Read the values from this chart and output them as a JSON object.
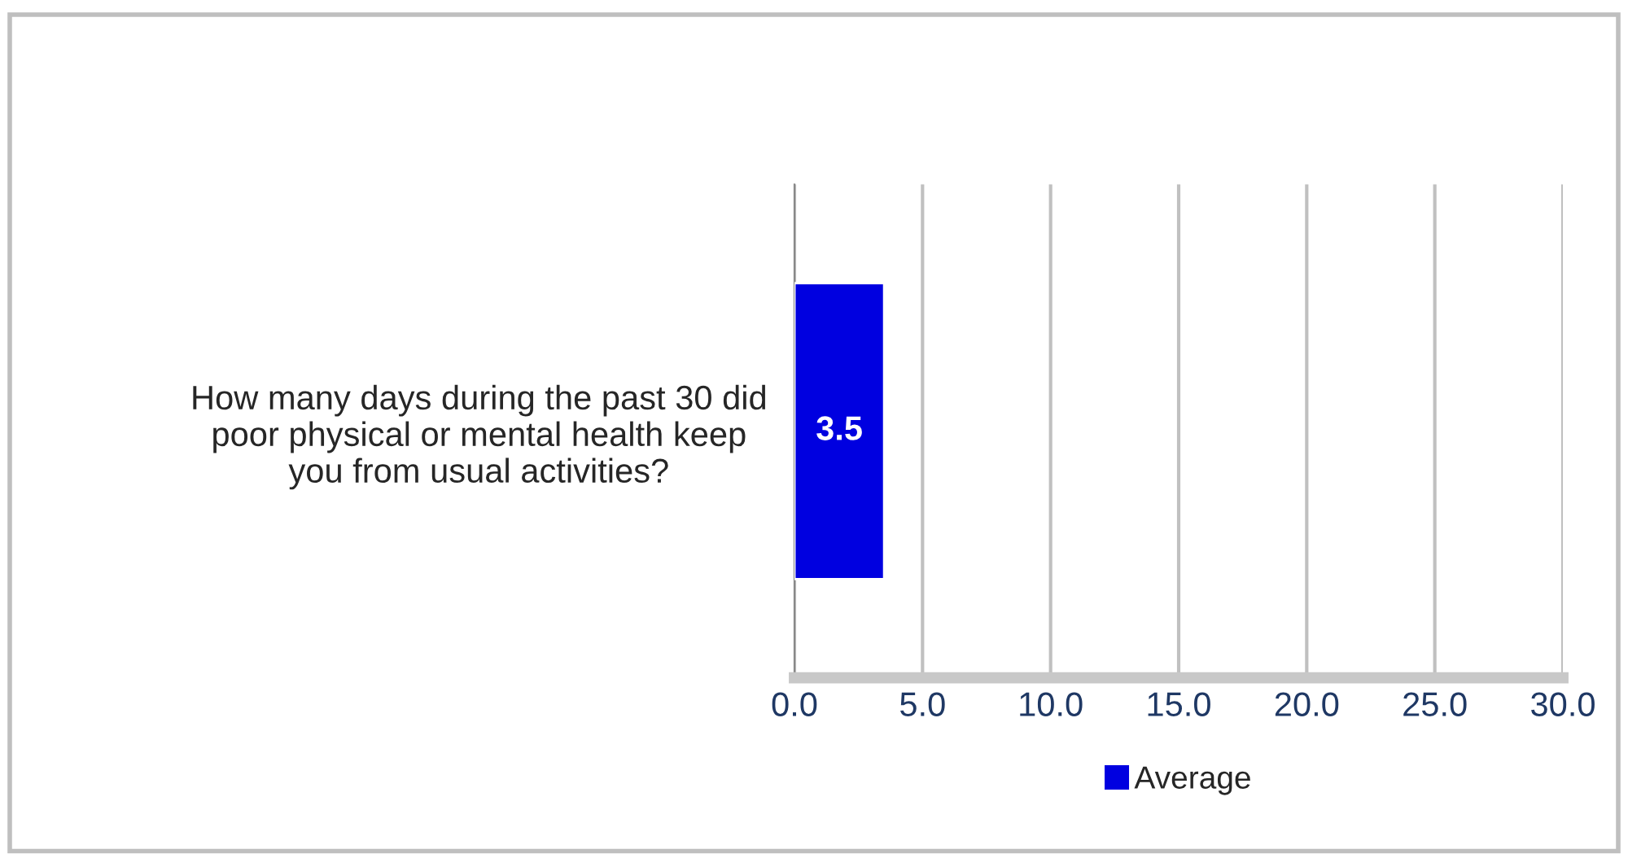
{
  "chart_data": {
    "type": "bar",
    "orientation": "horizontal",
    "categories": [
      "How many days during the past 30 did\npoor physical or mental health keep\nyou from usual activities?"
    ],
    "series": [
      {
        "name": "Average",
        "color": "#0000e0",
        "values": [
          3.5
        ]
      }
    ],
    "xlim": [
      0,
      30
    ],
    "xticks": [
      {
        "value": 0,
        "label": "0.0"
      },
      {
        "value": 5,
        "label": "5.0"
      },
      {
        "value": 10,
        "label": "10.0"
      },
      {
        "value": 15,
        "label": "15.0"
      },
      {
        "value": 20,
        "label": "20.0"
      },
      {
        "value": 25,
        "label": "25.0"
      },
      {
        "value": 30,
        "label": "30.0"
      }
    ],
    "grid": "x",
    "legend": "bottom",
    "data_labels": true
  }
}
